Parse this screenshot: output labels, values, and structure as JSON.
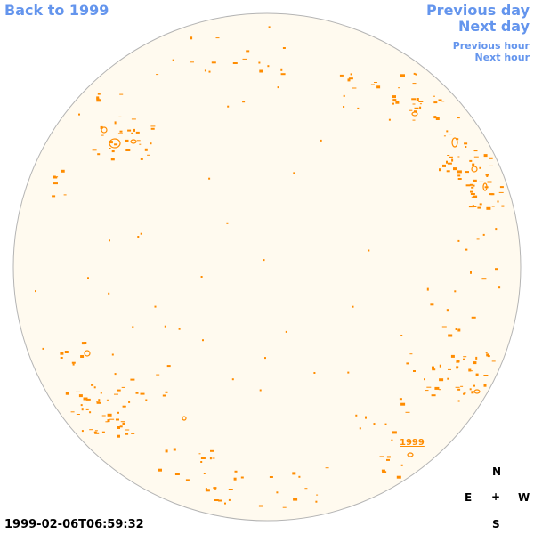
{
  "nav": {
    "back_label": "Back to 1999",
    "prev_day_label": "Previous day",
    "next_day_label": "Next day",
    "prev_hour_label": "Previous hour",
    "next_hour_label": "Next hour"
  },
  "compass": {
    "north": "N",
    "east": "E",
    "center": "+",
    "west": "W",
    "south": "S"
  },
  "timestamp": "1999-02-06T06:59:32",
  "region_label": "1999",
  "colors": {
    "disk_fill": "#fffaef",
    "disk_outline": "#b4b4b4",
    "contour": "#ff8c00",
    "link": "#6495ed"
  }
}
